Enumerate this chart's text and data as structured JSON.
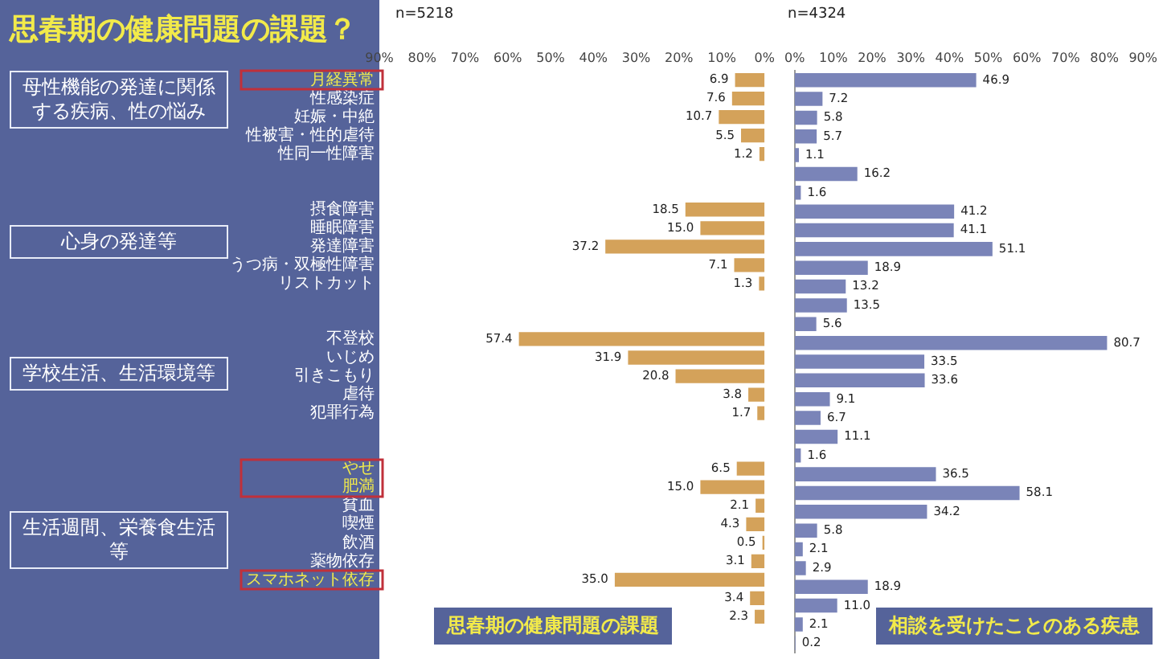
{
  "chart_data": [
    {
      "type": "bar",
      "orientation": "horizontal",
      "title": "思春期の健康問題の課題？",
      "xlabel": "思春期の健康問題の課題",
      "annotations": [
        "n=5218",
        "母性機能の発達に関係する疾病、性の悩み",
        "心身の発達等",
        "学校生活、生活環境等",
        "生活週間、栄養食生活等"
      ],
      "categories": [
        "月経異常",
        "性感染症",
        "妊娠・中絶",
        "性被害・性的虐待",
        "性同一性障害",
        null,
        null,
        "摂食障害",
        "睡眠障害",
        "発達障害",
        "うつ病・双極性障害",
        "リストカット",
        null,
        null,
        "不登校",
        "いじめ",
        "引きこもり",
        "虐待",
        "犯罪行為",
        null,
        null,
        "やせ",
        "肥満",
        "貧血",
        "喫煙",
        "飲酒",
        "薬物依存",
        "スマホネット依存",
        null,
        null,
        null
      ],
      "values": [
        6.9,
        7.6,
        10.7,
        5.5,
        1.2,
        null,
        null,
        18.5,
        15.0,
        37.2,
        7.1,
        1.3,
        null,
        null,
        57.4,
        31.9,
        20.8,
        3.8,
        1.7,
        null,
        null,
        6.5,
        15.0,
        2.1,
        4.3,
        0.5,
        3.1,
        35.0,
        3.4,
        2.3,
        null
      ],
      "value_labels": [
        "6.9",
        "7.6",
        "10.7",
        "5.5",
        "1.2",
        null,
        null,
        "18.5",
        "15.0",
        "37.2",
        "7.1",
        "1.3",
        null,
        null,
        "57.4",
        "31.9",
        "20.8",
        "3.8",
        "1.7",
        null,
        null,
        "6.5",
        "15.0",
        "2.1",
        "4.3",
        "0.5",
        "3.1",
        "35.0",
        "3.4",
        "2.3",
        null
      ],
      "color": "#d4a25a",
      "xlim": [
        90,
        0
      ],
      "xticks": [
        {
          "value": 90,
          "label": "90%"
        },
        {
          "value": 80,
          "label": "80%"
        },
        {
          "value": 70,
          "label": "70%"
        },
        {
          "value": 60,
          "label": "60%"
        },
        {
          "value": 50,
          "label": "50%"
        },
        {
          "value": 40,
          "label": "40%"
        },
        {
          "value": 30,
          "label": "30%"
        },
        {
          "value": 20,
          "label": "20%"
        },
        {
          "value": 10,
          "label": "10%"
        },
        {
          "value": 0,
          "label": "0%"
        }
      ],
      "grid": false,
      "legend": false
    },
    {
      "type": "bar",
      "orientation": "horizontal",
      "xlabel": "相談を受けたことのある疾患",
      "tick_labels": "x",
      "annotations": [
        "n=4324"
      ],
      "categories": [
        null,
        null,
        null,
        null,
        null,
        null,
        null,
        null,
        null,
        null,
        null,
        null,
        null,
        null,
        null,
        null,
        null,
        null,
        null,
        null,
        null,
        null,
        null,
        null,
        null,
        null,
        null,
        null,
        null,
        null,
        null
      ],
      "values": [
        46.9,
        7.2,
        5.8,
        5.7,
        1.1,
        16.2,
        1.6,
        41.2,
        41.1,
        51.1,
        18.9,
        13.2,
        13.5,
        5.6,
        80.7,
        33.5,
        33.6,
        9.1,
        6.7,
        11.1,
        1.6,
        36.5,
        58.1,
        34.2,
        5.8,
        2.1,
        2.9,
        18.9,
        11.0,
        2.1,
        0.2
      ],
      "value_labels": [
        "46.9",
        "7.2",
        "5.8",
        "5.7",
        "1.1",
        "16.2",
        "1.6",
        "41.2",
        "41.1",
        "51.1",
        "18.9",
        "13.2",
        "13.5",
        "5.6",
        "80.7",
        "33.5",
        "33.6",
        "9.1",
        "6.7",
        "11.1",
        "1.6",
        "36.5",
        "58.1",
        "34.2",
        "5.8",
        "2.1",
        "2.9",
        "18.9",
        "11.0",
        "2.1",
        "0.2"
      ],
      "color": "#7a84b8",
      "xlim": [
        0,
        90
      ],
      "xticks": [
        {
          "value": 0,
          "label": "0%"
        },
        {
          "value": 10,
          "label": "10%"
        },
        {
          "value": 20,
          "label": "20%"
        },
        {
          "value": 30,
          "label": "30%"
        },
        {
          "value": 40,
          "label": "40%"
        },
        {
          "value": 50,
          "label": "50%"
        },
        {
          "value": 60,
          "label": "60%"
        },
        {
          "value": 70,
          "label": "70%"
        },
        {
          "value": 80,
          "label": "80%"
        },
        {
          "value": 90,
          "label": "90%"
        }
      ],
      "grid": false,
      "legend": false
    }
  ]
}
